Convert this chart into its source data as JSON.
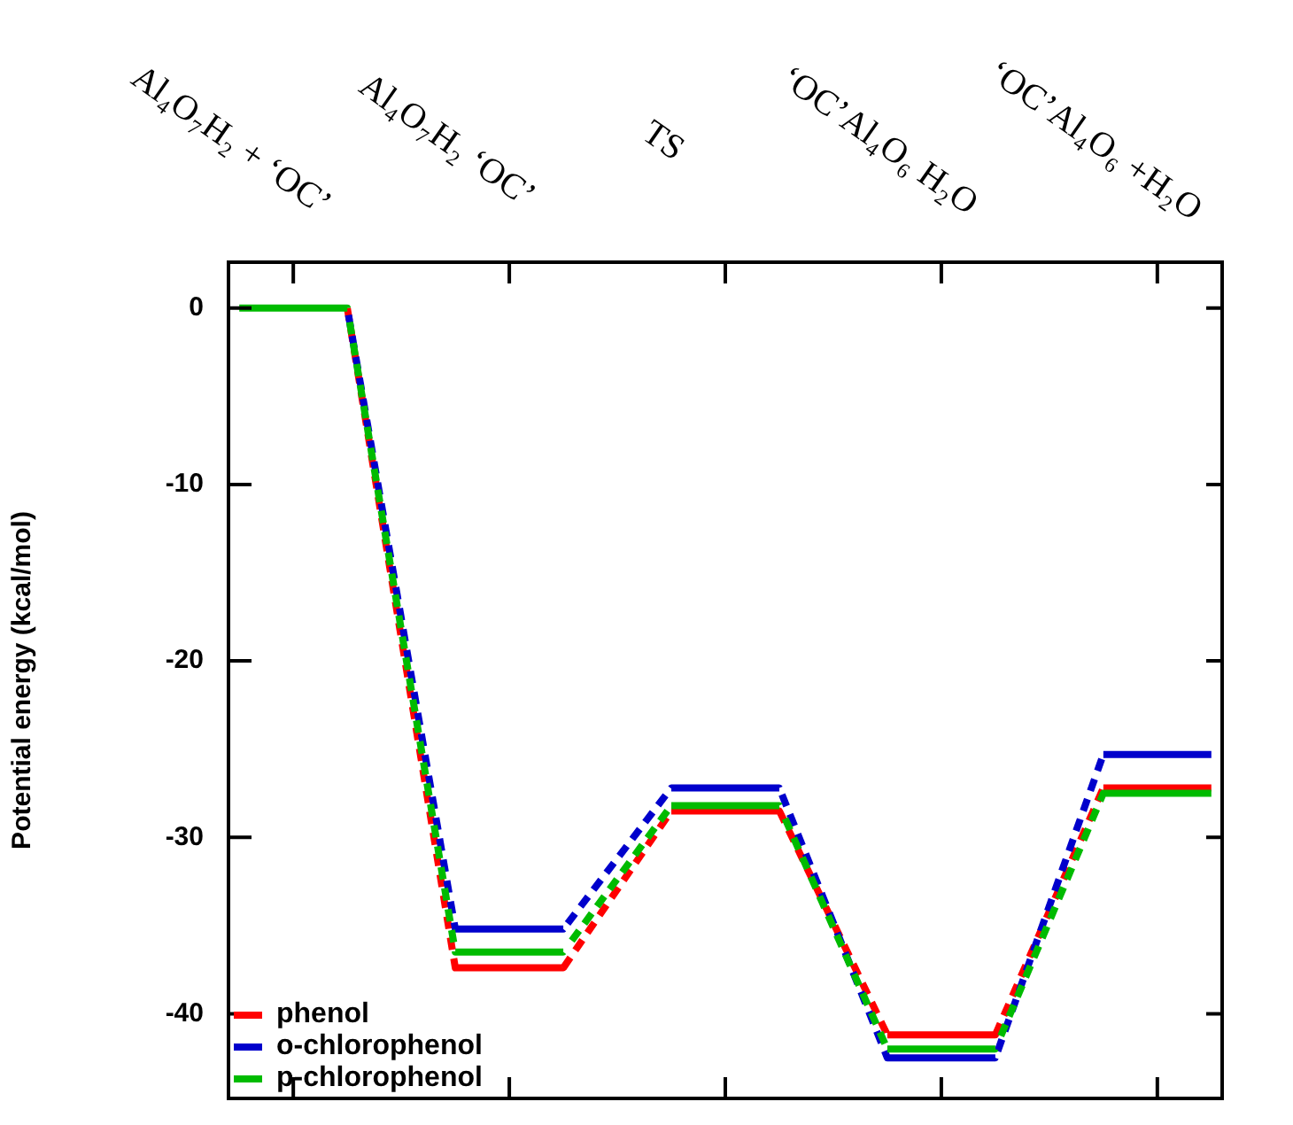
{
  "chart_data": {
    "type": "line",
    "ylabel": "Potential energy (kcal/mol)",
    "categories": [
      "Al₄O₇H₂ + ‘OC’",
      null,
      "Al₄O₇H₂ ‘OC’",
      null,
      "TS",
      null,
      "‘OC’Al₄O₆ H₂O",
      null,
      "‘OC’Al₄O₆ +H₂O",
      null
    ],
    "ylim": [
      -44.8,
      2.6
    ],
    "yticks": [
      0,
      -10,
      -20,
      -30,
      -40
    ],
    "line_style": "dashed",
    "legend": "bottom left",
    "marker": "none",
    "series": [
      {
        "name": "phenol",
        "color": "#ff0000",
        "values": [
          null,
          0,
          -37.4,
          -37.4,
          -28.5,
          -28.5,
          -41.2,
          -41.2,
          -27.2,
          -27.2
        ]
      },
      {
        "name": "o-chlorophenol",
        "color": "#0000cc",
        "values": [
          null,
          0,
          -35.2,
          -35.2,
          -27.2,
          -27.2,
          -42.5,
          -42.5,
          -25.3,
          -25.3
        ]
      },
      {
        "name": "p-chlorophenol",
        "color": "#00bb00",
        "values": [
          0,
          0,
          -36.5,
          -36.5,
          -28.2,
          -28.2,
          -42.0,
          -42.0,
          -27.5,
          -27.5
        ]
      }
    ]
  }
}
